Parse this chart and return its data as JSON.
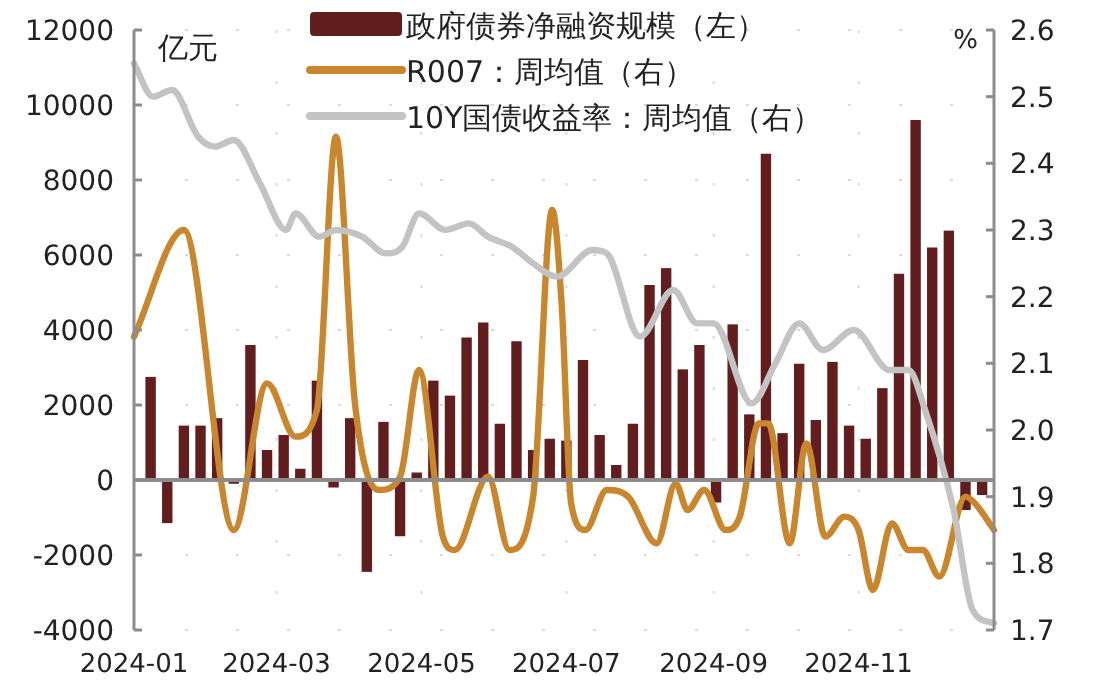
{
  "chart_data": {
    "type": "bar",
    "ylabel": "亿元",
    "y2label": "%",
    "legend": "top",
    "grid": true,
    "xlim": [
      "2024-01-01",
      "2024-12-28"
    ],
    "xticks": [
      {
        "value": "2024-01-01",
        "label": "2024-01"
      },
      {
        "value": "2024-03-01",
        "label": "2024-03"
      },
      {
        "value": "2024-05-01",
        "label": "2024-05"
      },
      {
        "value": "2024-07-01",
        "label": "2024-07"
      },
      {
        "value": "2024-09-01",
        "label": "2024-09"
      },
      {
        "value": "2024-11-01",
        "label": "2024-11"
      }
    ],
    "ylim": [
      -4000,
      12000
    ],
    "yticks": [
      -4000,
      -2000,
      0,
      2000,
      4000,
      6000,
      8000,
      10000,
      12000
    ],
    "y2lim": [
      1.7,
      2.6
    ],
    "y2ticks": [
      {
        "value": 1.7,
        "label": "1.7"
      },
      {
        "value": 1.8,
        "label": "1.8"
      },
      {
        "value": 1.9,
        "label": "1.9"
      },
      {
        "value": 2.0,
        "label": "2.0"
      },
      {
        "value": 2.1,
        "label": "2.1"
      },
      {
        "value": 2.2,
        "label": "2.2"
      },
      {
        "value": 2.3,
        "label": "2.3"
      },
      {
        "value": 2.4,
        "label": "2.4"
      },
      {
        "value": 2.5,
        "label": "2.5"
      },
      {
        "value": 2.6,
        "label": "2.6"
      }
    ],
    "series": [
      {
        "name": "政府债券净融资规模（左）",
        "color": "#621e1e",
        "x": [
          "2024-01-08",
          "2024-01-15",
          "2024-01-22",
          "2024-01-29",
          "2024-02-05",
          "2024-02-12",
          "2024-02-19",
          "2024-02-26",
          "2024-03-04",
          "2024-03-11",
          "2024-03-18",
          "2024-03-25",
          "2024-04-01",
          "2024-04-08",
          "2024-04-15",
          "2024-04-22",
          "2024-04-29",
          "2024-05-06",
          "2024-05-13",
          "2024-05-20",
          "2024-05-27",
          "2024-06-03",
          "2024-06-10",
          "2024-06-17",
          "2024-06-24",
          "2024-07-01",
          "2024-07-08",
          "2024-07-15",
          "2024-07-22",
          "2024-07-29",
          "2024-08-05",
          "2024-08-12",
          "2024-08-19",
          "2024-08-26",
          "2024-09-02",
          "2024-09-09",
          "2024-09-16",
          "2024-09-23",
          "2024-09-30",
          "2024-10-07",
          "2024-10-14",
          "2024-10-21",
          "2024-10-28",
          "2024-11-04",
          "2024-11-11",
          "2024-11-18",
          "2024-11-25",
          "2024-12-02",
          "2024-12-09",
          "2024-12-16",
          "2024-12-23"
        ],
        "values": [
          2750,
          -1150,
          1450,
          1450,
          1650,
          -100,
          3600,
          800,
          1200,
          300,
          2650,
          -200,
          1650,
          -2450,
          1550,
          -1500,
          200,
          2650,
          2250,
          3800,
          4200,
          1500,
          3700,
          800,
          1100,
          1050,
          3200,
          1200,
          400,
          1500,
          5200,
          5650,
          2950,
          3600,
          -600,
          4150,
          1750,
          8700,
          1250,
          3100,
          1600,
          3150,
          1450,
          1100,
          2450,
          5500,
          9600,
          6200,
          6650,
          -800,
          -400
        ]
      },
      {
        "name": "R007：周均值（右）",
        "type": "line",
        "axis": "y2",
        "color": "#c8862e",
        "x": [
          "2024-01-01",
          "2024-01-22",
          "2024-02-12",
          "2024-02-26",
          "2024-03-09",
          "2024-03-18",
          "2024-03-26",
          "2024-04-03",
          "2024-04-13",
          "2024-04-22",
          "2024-04-30",
          "2024-05-10",
          "2024-05-15",
          "2024-05-29",
          "2024-06-07",
          "2024-06-17",
          "2024-06-25",
          "2024-06-29",
          "2024-07-03",
          "2024-07-09",
          "2024-07-18",
          "2024-07-27",
          "2024-08-08",
          "2024-08-16",
          "2024-08-21",
          "2024-08-28",
          "2024-09-06",
          "2024-09-12",
          "2024-09-20",
          "2024-09-24",
          "2024-10-03",
          "2024-10-10",
          "2024-10-18",
          "2024-10-26",
          "2024-11-01",
          "2024-11-07",
          "2024-11-15",
          "2024-11-22",
          "2024-11-28",
          "2024-12-05",
          "2024-12-16",
          "2024-12-20",
          "2024-12-28"
        ],
        "values": [
          2.14,
          2.3,
          1.85,
          2.07,
          1.99,
          2.03,
          2.44,
          2.04,
          1.91,
          1.93,
          2.09,
          1.84,
          1.82,
          1.93,
          1.82,
          1.9,
          2.33,
          2.19,
          1.89,
          1.85,
          1.91,
          1.9,
          1.83,
          1.92,
          1.88,
          1.91,
          1.85,
          1.87,
          2.01,
          2.01,
          1.83,
          1.98,
          1.84,
          1.87,
          1.85,
          1.76,
          1.86,
          1.82,
          1.82,
          1.78,
          1.9,
          1.89,
          1.85
        ]
      },
      {
        "name": "10Y国债收益率：周均值（右）",
        "type": "line",
        "axis": "y2",
        "color": "#c3c3c3",
        "x": [
          "2024-01-01",
          "2024-01-09",
          "2024-01-17",
          "2024-01-28",
          "2024-02-04",
          "2024-02-12",
          "2024-02-23",
          "2024-03-05",
          "2024-03-09",
          "2024-03-19",
          "2024-03-26",
          "2024-04-06",
          "2024-04-16",
          "2024-04-23",
          "2024-04-30",
          "2024-05-11",
          "2024-05-21",
          "2024-05-29",
          "2024-06-08",
          "2024-06-17",
          "2024-06-27",
          "2024-07-12",
          "2024-07-18",
          "2024-08-01",
          "2024-08-15",
          "2024-08-25",
          "2024-09-01",
          "2024-09-17",
          "2024-09-27",
          "2024-10-07",
          "2024-10-17",
          "2024-10-30",
          "2024-11-14",
          "2024-11-22",
          "2024-11-29",
          "2024-12-11",
          "2024-12-19",
          "2024-12-28"
        ],
        "values": [
          2.55,
          2.5,
          2.51,
          2.44,
          2.425,
          2.435,
          2.37,
          2.3,
          2.325,
          2.29,
          2.3,
          2.29,
          2.265,
          2.275,
          2.325,
          2.3,
          2.31,
          2.29,
          2.275,
          2.25,
          2.23,
          2.27,
          2.265,
          2.14,
          2.21,
          2.16,
          2.16,
          2.04,
          2.1,
          2.16,
          2.12,
          2.15,
          2.09,
          2.09,
          2.03,
          1.88,
          1.73,
          1.71
        ]
      }
    ]
  }
}
